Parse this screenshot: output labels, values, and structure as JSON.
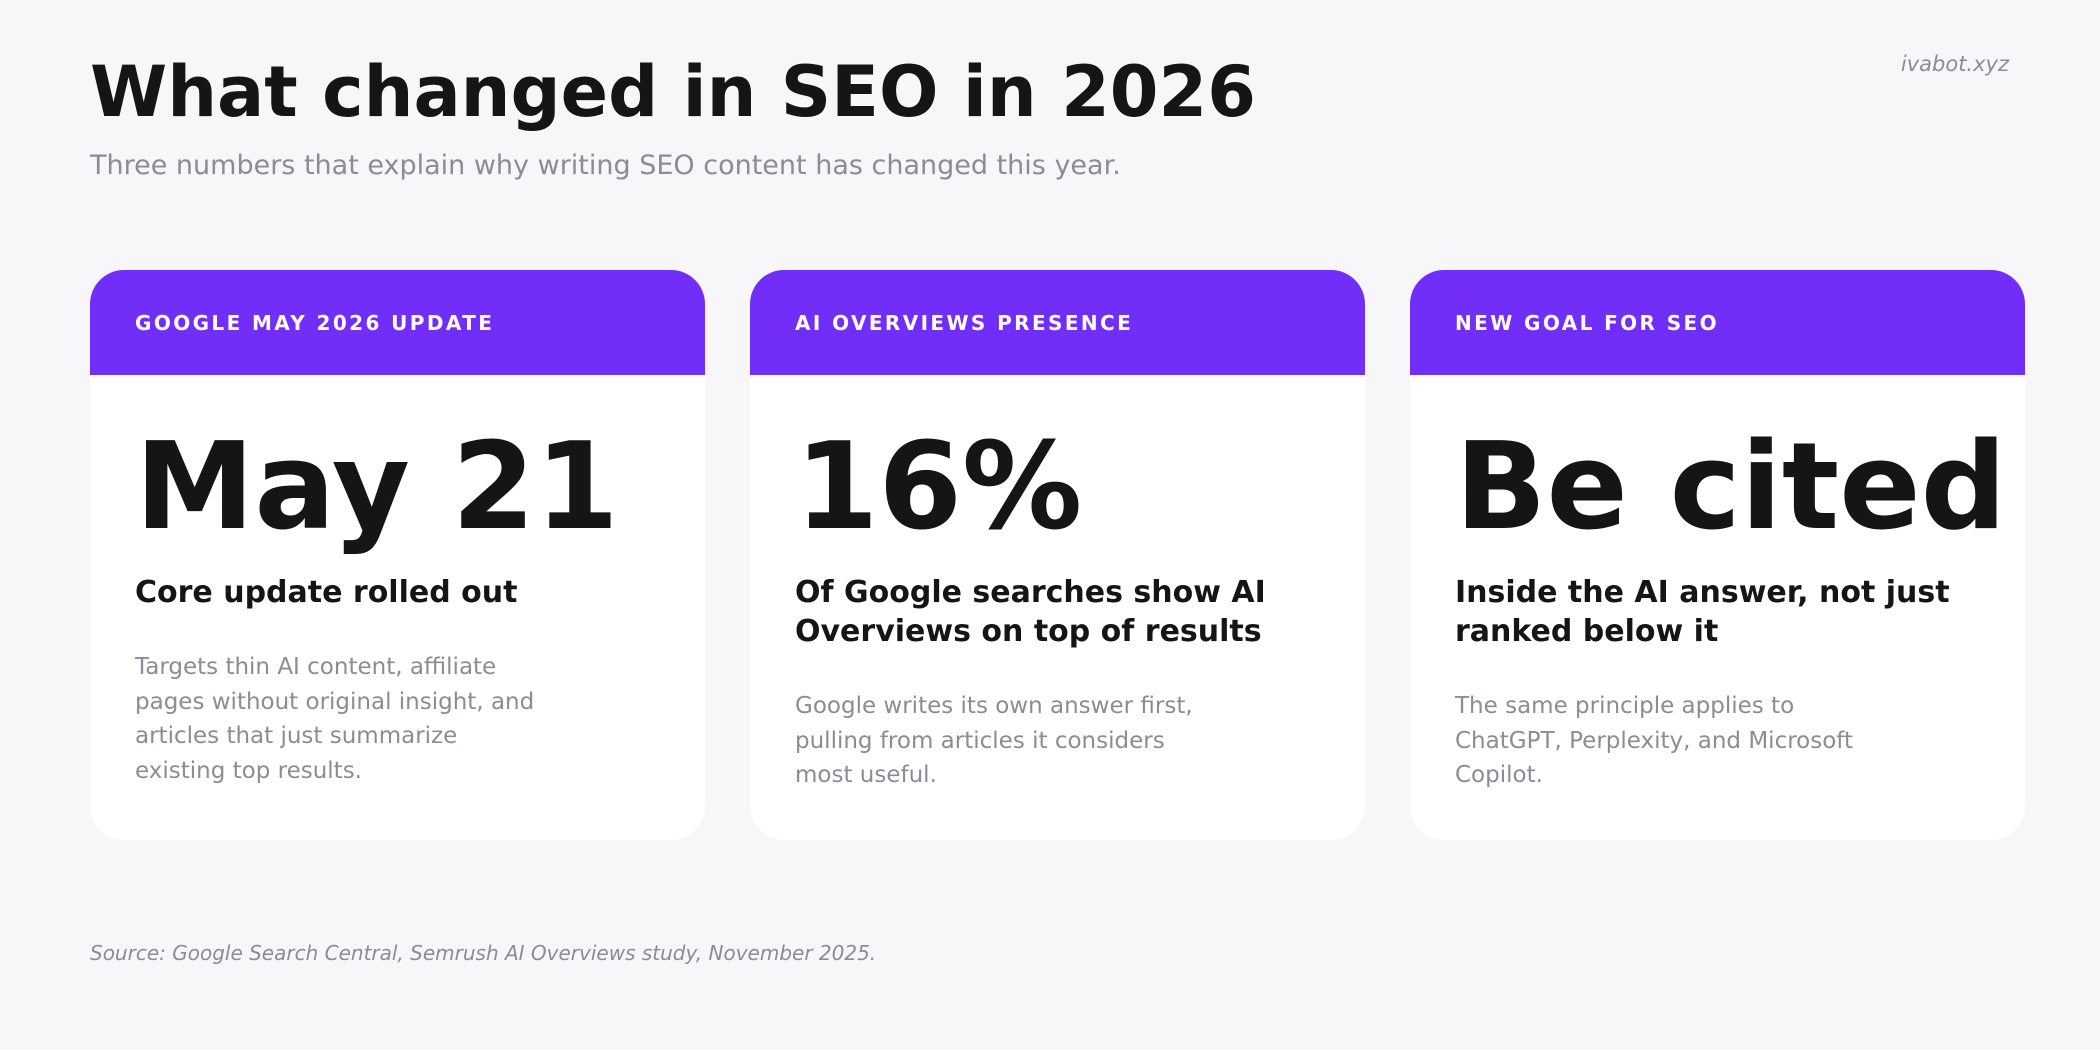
{
  "brand": "ivabot.xyz",
  "title": "What changed in SEO in 2026",
  "subtitle": "Three numbers that explain why writing SEO content has changed this year.",
  "colors": {
    "accent": "#722ef9",
    "background": "#f7f7f9",
    "card": "#ffffff",
    "text_dark": "#151515",
    "text_muted": "#8d8b93"
  },
  "cards": [
    {
      "label": "GOOGLE MAY 2026 UPDATE",
      "big": "May 21",
      "headline": "Core update rolled out",
      "description": "Targets thin AI content, affiliate pages without original insight, and articles that just summarize existing top results."
    },
    {
      "label": "AI OVERVIEWS PRESENCE",
      "big": "16%",
      "headline": "Of Google searches show AI Overviews on top of results",
      "description": "Google writes its own answer first, pulling from articles it considers most useful."
    },
    {
      "label": "NEW GOAL FOR SEO",
      "big": "Be cited",
      "headline": "Inside the AI answer, not just ranked below it",
      "description": "The same principle applies to ChatGPT, Perplexity, and Microsoft Copilot."
    }
  ],
  "source": "Source: Google Search Central, Semrush AI Overviews study, November 2025."
}
